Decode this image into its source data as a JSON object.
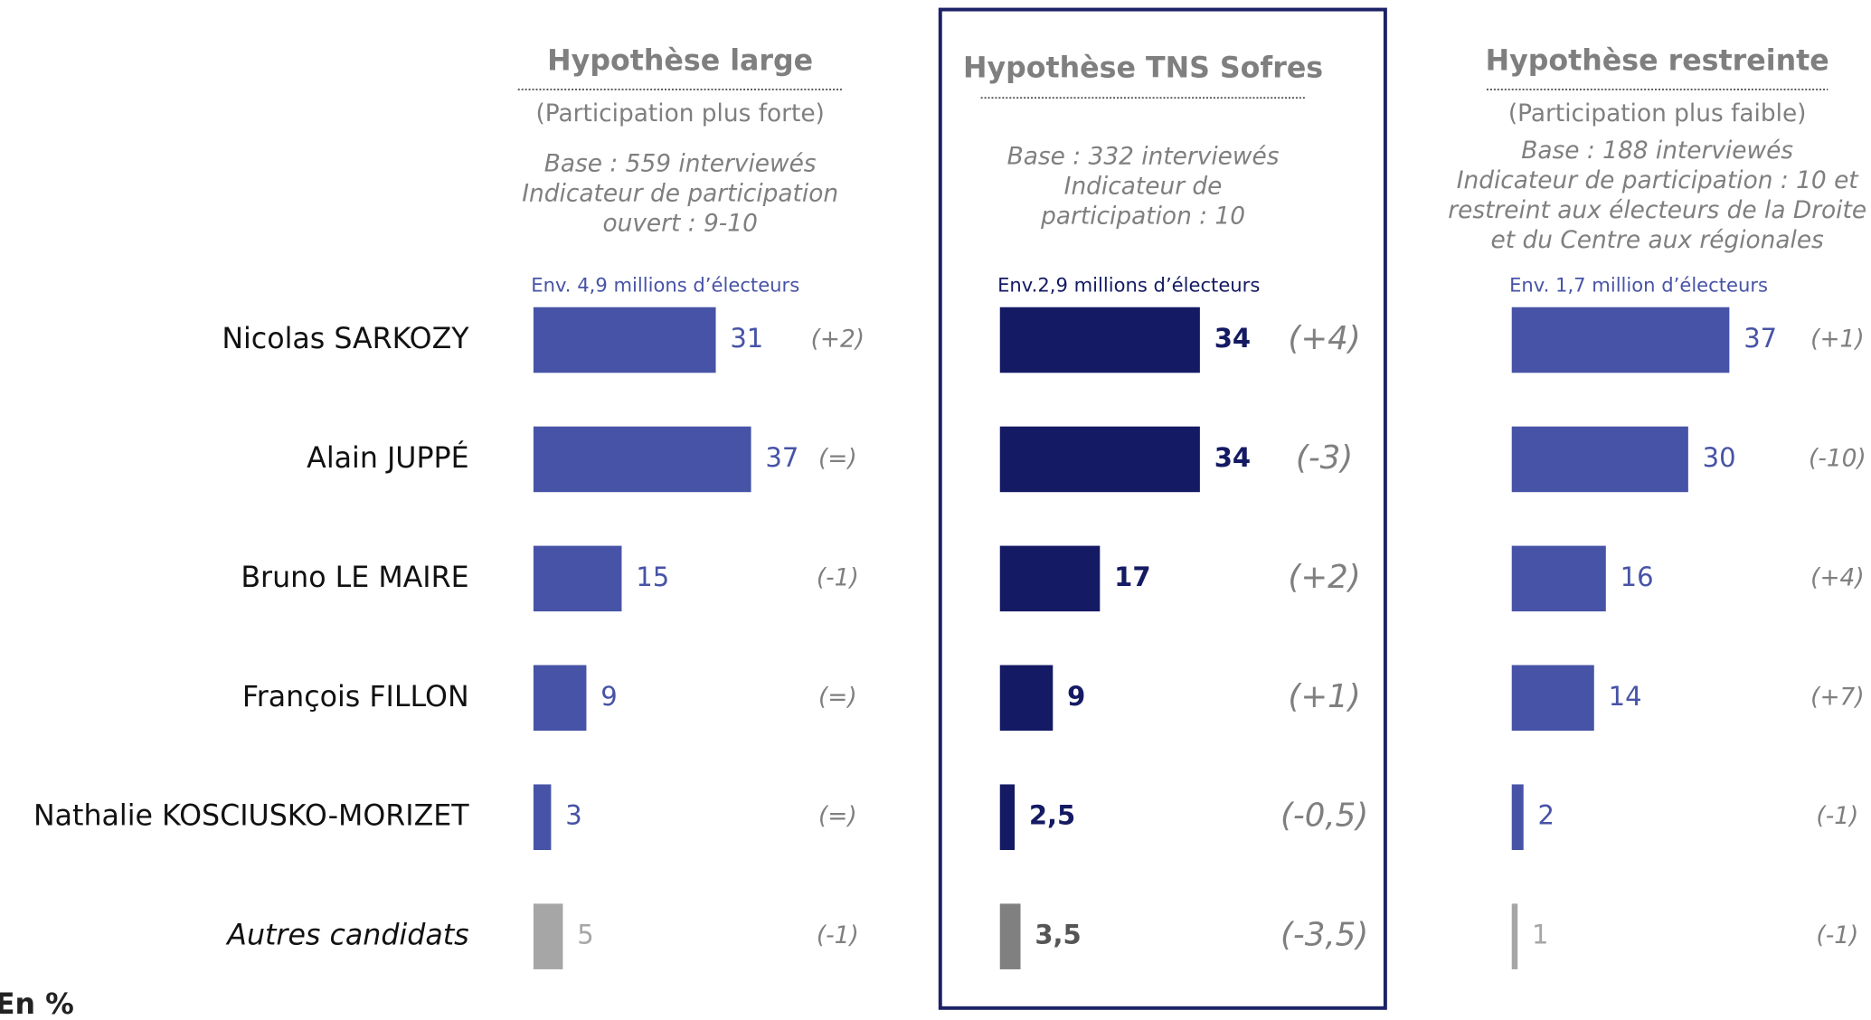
{
  "chart_data": {
    "type": "bar",
    "categories": [
      "Nicolas SARKOZY",
      "Alain JUPPÉ",
      "Bruno LE MAIRE",
      "François FILLON",
      "Nathalie KOSCIUSKO-MORIZET",
      "Autres candidats"
    ],
    "panels": [
      {
        "title": "Hypothèse large",
        "subtitle": "(Participation plus forte)",
        "base": [
          "Base : 559 interviewés",
          "Indicateur de participation",
          "ouvert : 9-10"
        ],
        "electors": "Env. 4,9 millions d’électeurs",
        "color": "#4753a6",
        "other_color": "#a6a6a6",
        "values": [
          31,
          37,
          15,
          9,
          3,
          5
        ],
        "changes": [
          "(+2)",
          "(=)",
          "(-1)",
          "(=)",
          "(=)",
          "(-1)"
        ]
      },
      {
        "title": "Hypothèse TNS Sofres",
        "base": [
          "Base : 332 interviewés",
          "Indicateur de",
          "participation : 10"
        ],
        "electors": "Env.2,9 millions d’électeurs",
        "color": "#141a63",
        "other_color": "#808080",
        "values": [
          34,
          34,
          17,
          9,
          2.5,
          3.5
        ],
        "value_labels": [
          "34",
          "34",
          "17",
          "9",
          "2,5",
          "3,5"
        ],
        "changes": [
          "(+4)",
          "(-3)",
          "(+2)",
          "(+1)",
          "(-0,5)",
          "(-3,5)"
        ]
      },
      {
        "title": "Hypothèse restreinte",
        "subtitle": "(Participation plus faible)",
        "base": [
          "Base : 188 interviewés",
          "Indicateur de participation : 10 et",
          "restreint aux électeurs de la Droite",
          "et du Centre aux régionales"
        ],
        "electors": "Env. 1,7 million d’électeurs",
        "color": "#4753a6",
        "other_color": "#a6a6a6",
        "values": [
          37,
          30,
          16,
          14,
          2,
          1
        ],
        "changes": [
          "(+1)",
          "(-10)",
          "(+4)",
          "(+7)",
          "(-1)",
          "(-1)"
        ]
      }
    ],
    "note": "En %"
  }
}
